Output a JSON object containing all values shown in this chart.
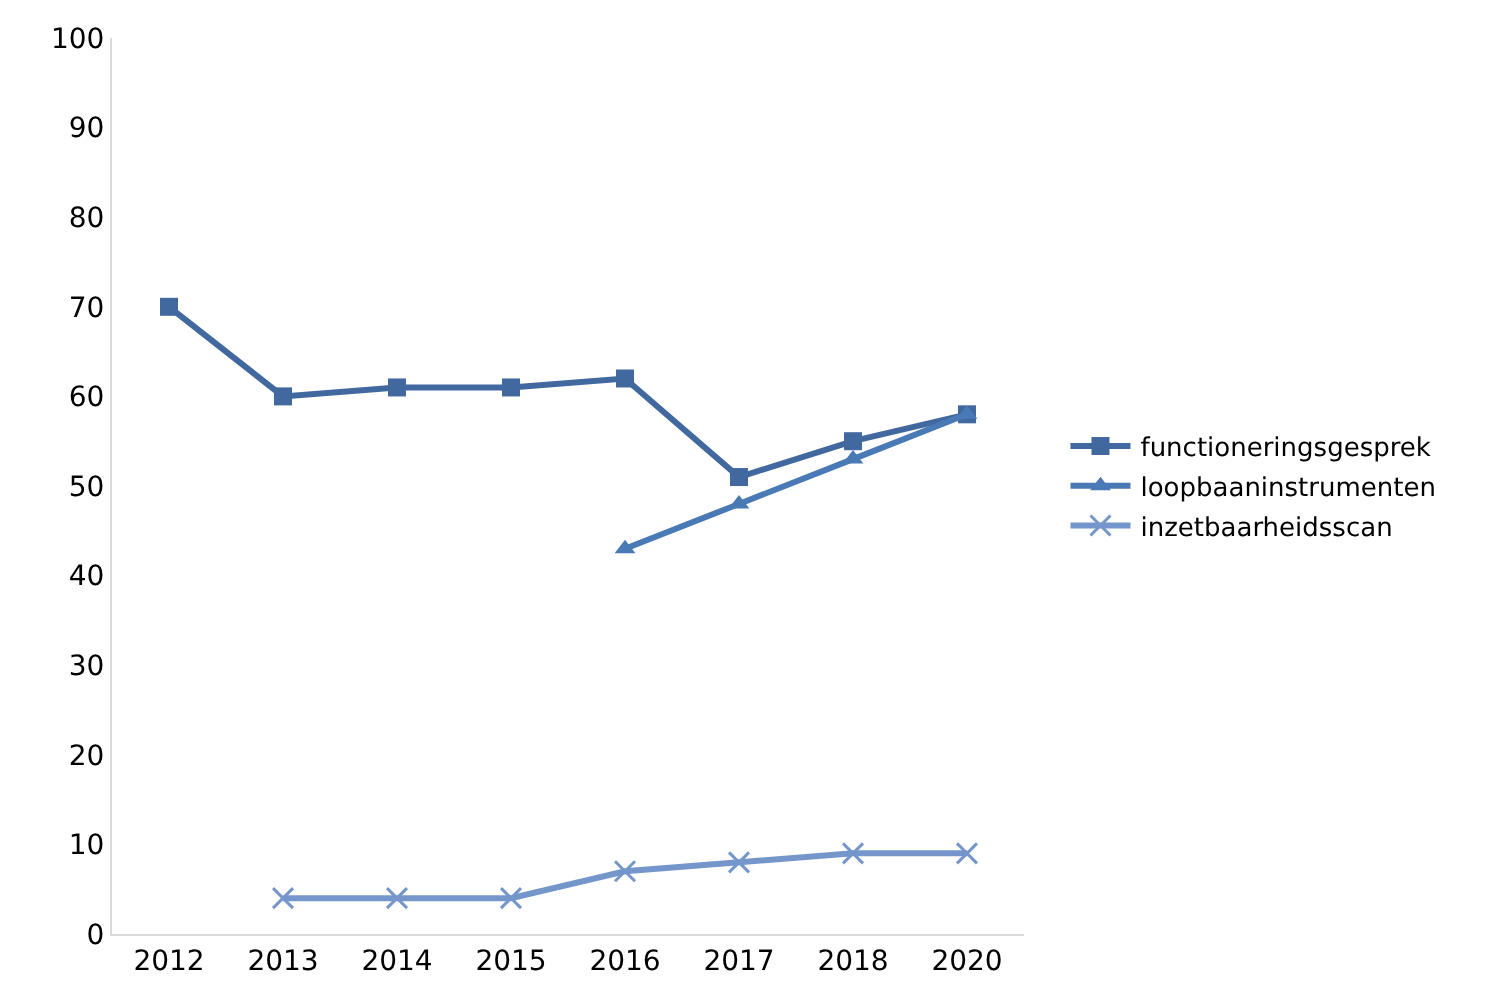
{
  "chart_data": {
    "type": "line",
    "categories": [
      "2012",
      "2013",
      "2014",
      "2015",
      "2016",
      "2017",
      "2018",
      "2020"
    ],
    "ylim": [
      0,
      100
    ],
    "yticks": [
      0,
      10,
      20,
      30,
      40,
      50,
      60,
      70,
      80,
      90,
      100
    ],
    "grid": false,
    "legend": "right",
    "series": [
      {
        "name": "functioneringsgesprek",
        "color": "#41699f",
        "marker": "square",
        "values": [
          70,
          60,
          61,
          61,
          62,
          51,
          55,
          58
        ]
      },
      {
        "name": "loopbaaninstrumenten",
        "color": "#4a7ab5",
        "marker": "triangle",
        "values": [
          null,
          null,
          null,
          null,
          43,
          48,
          53,
          58
        ]
      },
      {
        "name": "inzetbaarheidsscan",
        "color": "#7496cb",
        "marker": "cross",
        "values": [
          null,
          4,
          4,
          4,
          7,
          8,
          9,
          9
        ]
      }
    ]
  }
}
